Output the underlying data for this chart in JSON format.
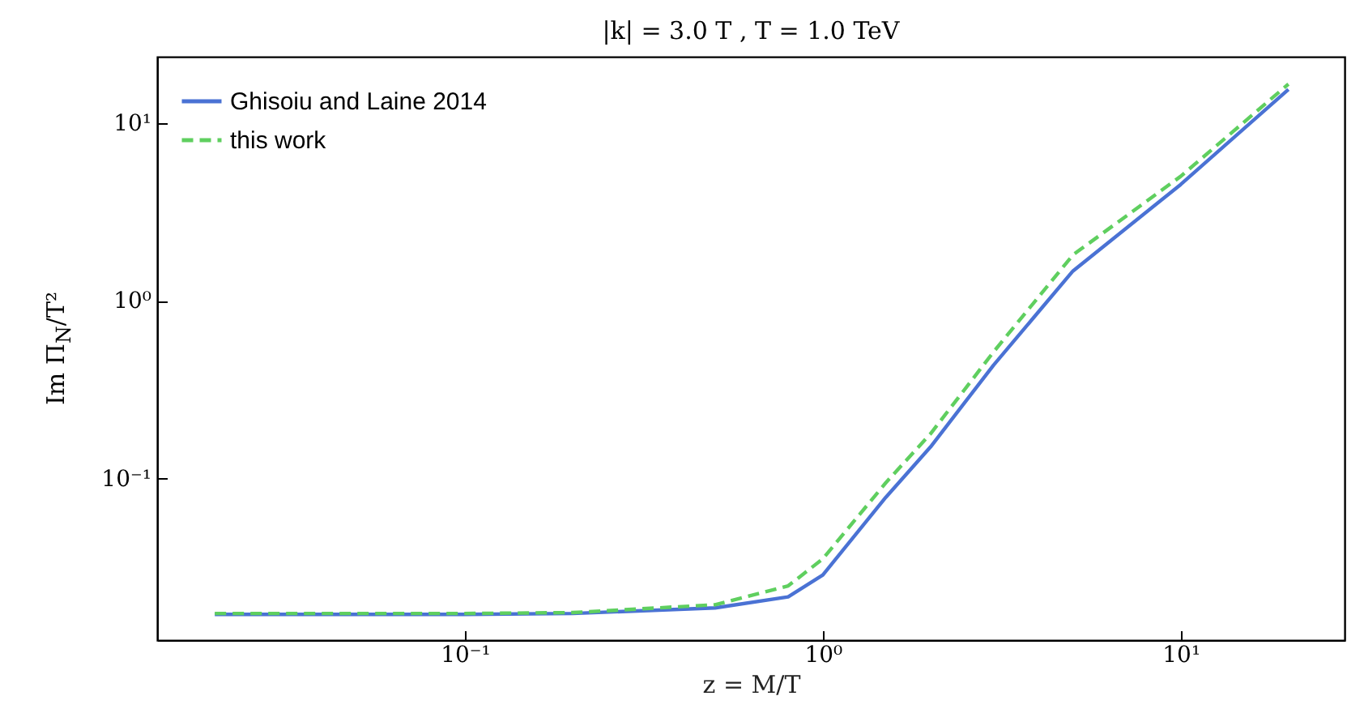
{
  "chart_data": {
    "type": "line",
    "title": "|k| = 3.0 T ,    T = 1.0 TeV",
    "xlabel": "z = M/T",
    "ylabel": "Im Π$_{N}$/T²",
    "log": "xy",
    "xlim": [
      0.0138,
      28.7
    ],
    "ylim": [
      0.0124,
      23.5
    ],
    "xticks": [
      {
        "value": 0.1,
        "label": "10⁻¹"
      },
      {
        "value": 1,
        "label": "10⁰"
      },
      {
        "value": 10,
        "label": "10¹"
      }
    ],
    "yticks": [
      {
        "value": 0.1,
        "label": "10⁻¹"
      },
      {
        "value": 1,
        "label": "10⁰"
      },
      {
        "value": 10,
        "label": "10¹"
      }
    ],
    "legend": "top left",
    "grid": false,
    "series": [
      {
        "name": "Ghisoiu and Laine 2014",
        "color": "#4a72d4",
        "line_style": "solid",
        "x": [
          0.02,
          0.05,
          0.1,
          0.2,
          0.5,
          0.8,
          1,
          1.5,
          2,
          3,
          5,
          10,
          20
        ],
        "values": [
          0.0173,
          0.0173,
          0.0173,
          0.0175,
          0.0188,
          0.0217,
          0.0288,
          0.0787,
          0.151,
          0.435,
          1.47,
          4.5,
          15.4
        ]
      },
      {
        "name": "this work",
        "color": "#5fcf5f",
        "line_style": "dashed",
        "x": [
          0.02,
          0.05,
          0.1,
          0.2,
          0.5,
          0.8,
          1,
          1.5,
          2,
          3,
          5,
          10,
          20
        ],
        "values": [
          0.0175,
          0.0175,
          0.0175,
          0.0177,
          0.0196,
          0.025,
          0.0355,
          0.095,
          0.179,
          0.516,
          1.81,
          5.0,
          16.5
        ]
      }
    ]
  }
}
